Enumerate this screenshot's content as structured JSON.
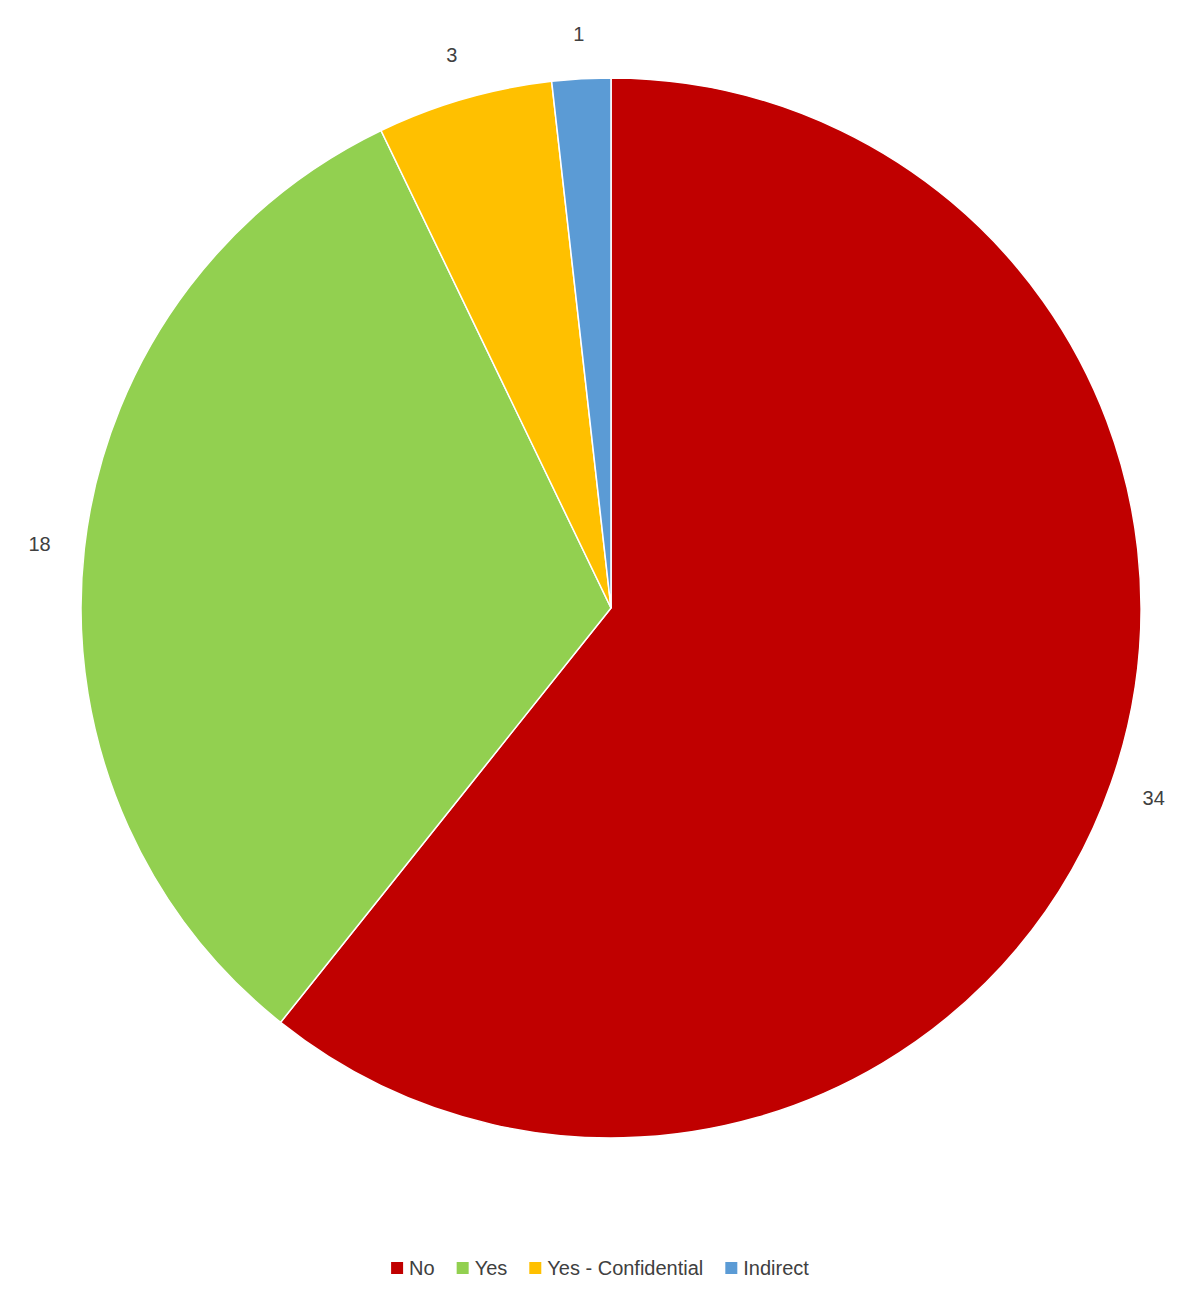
{
  "chart_data": {
    "type": "pie",
    "categories": [
      "No",
      "Yes",
      "Yes - Confidential",
      "Indirect"
    ],
    "values": [
      34,
      18,
      3,
      1
    ],
    "colors": [
      "#c00000",
      "#92d050",
      "#ffc000",
      "#5b9bd5"
    ],
    "data_labels": true,
    "legend": "bottom"
  }
}
